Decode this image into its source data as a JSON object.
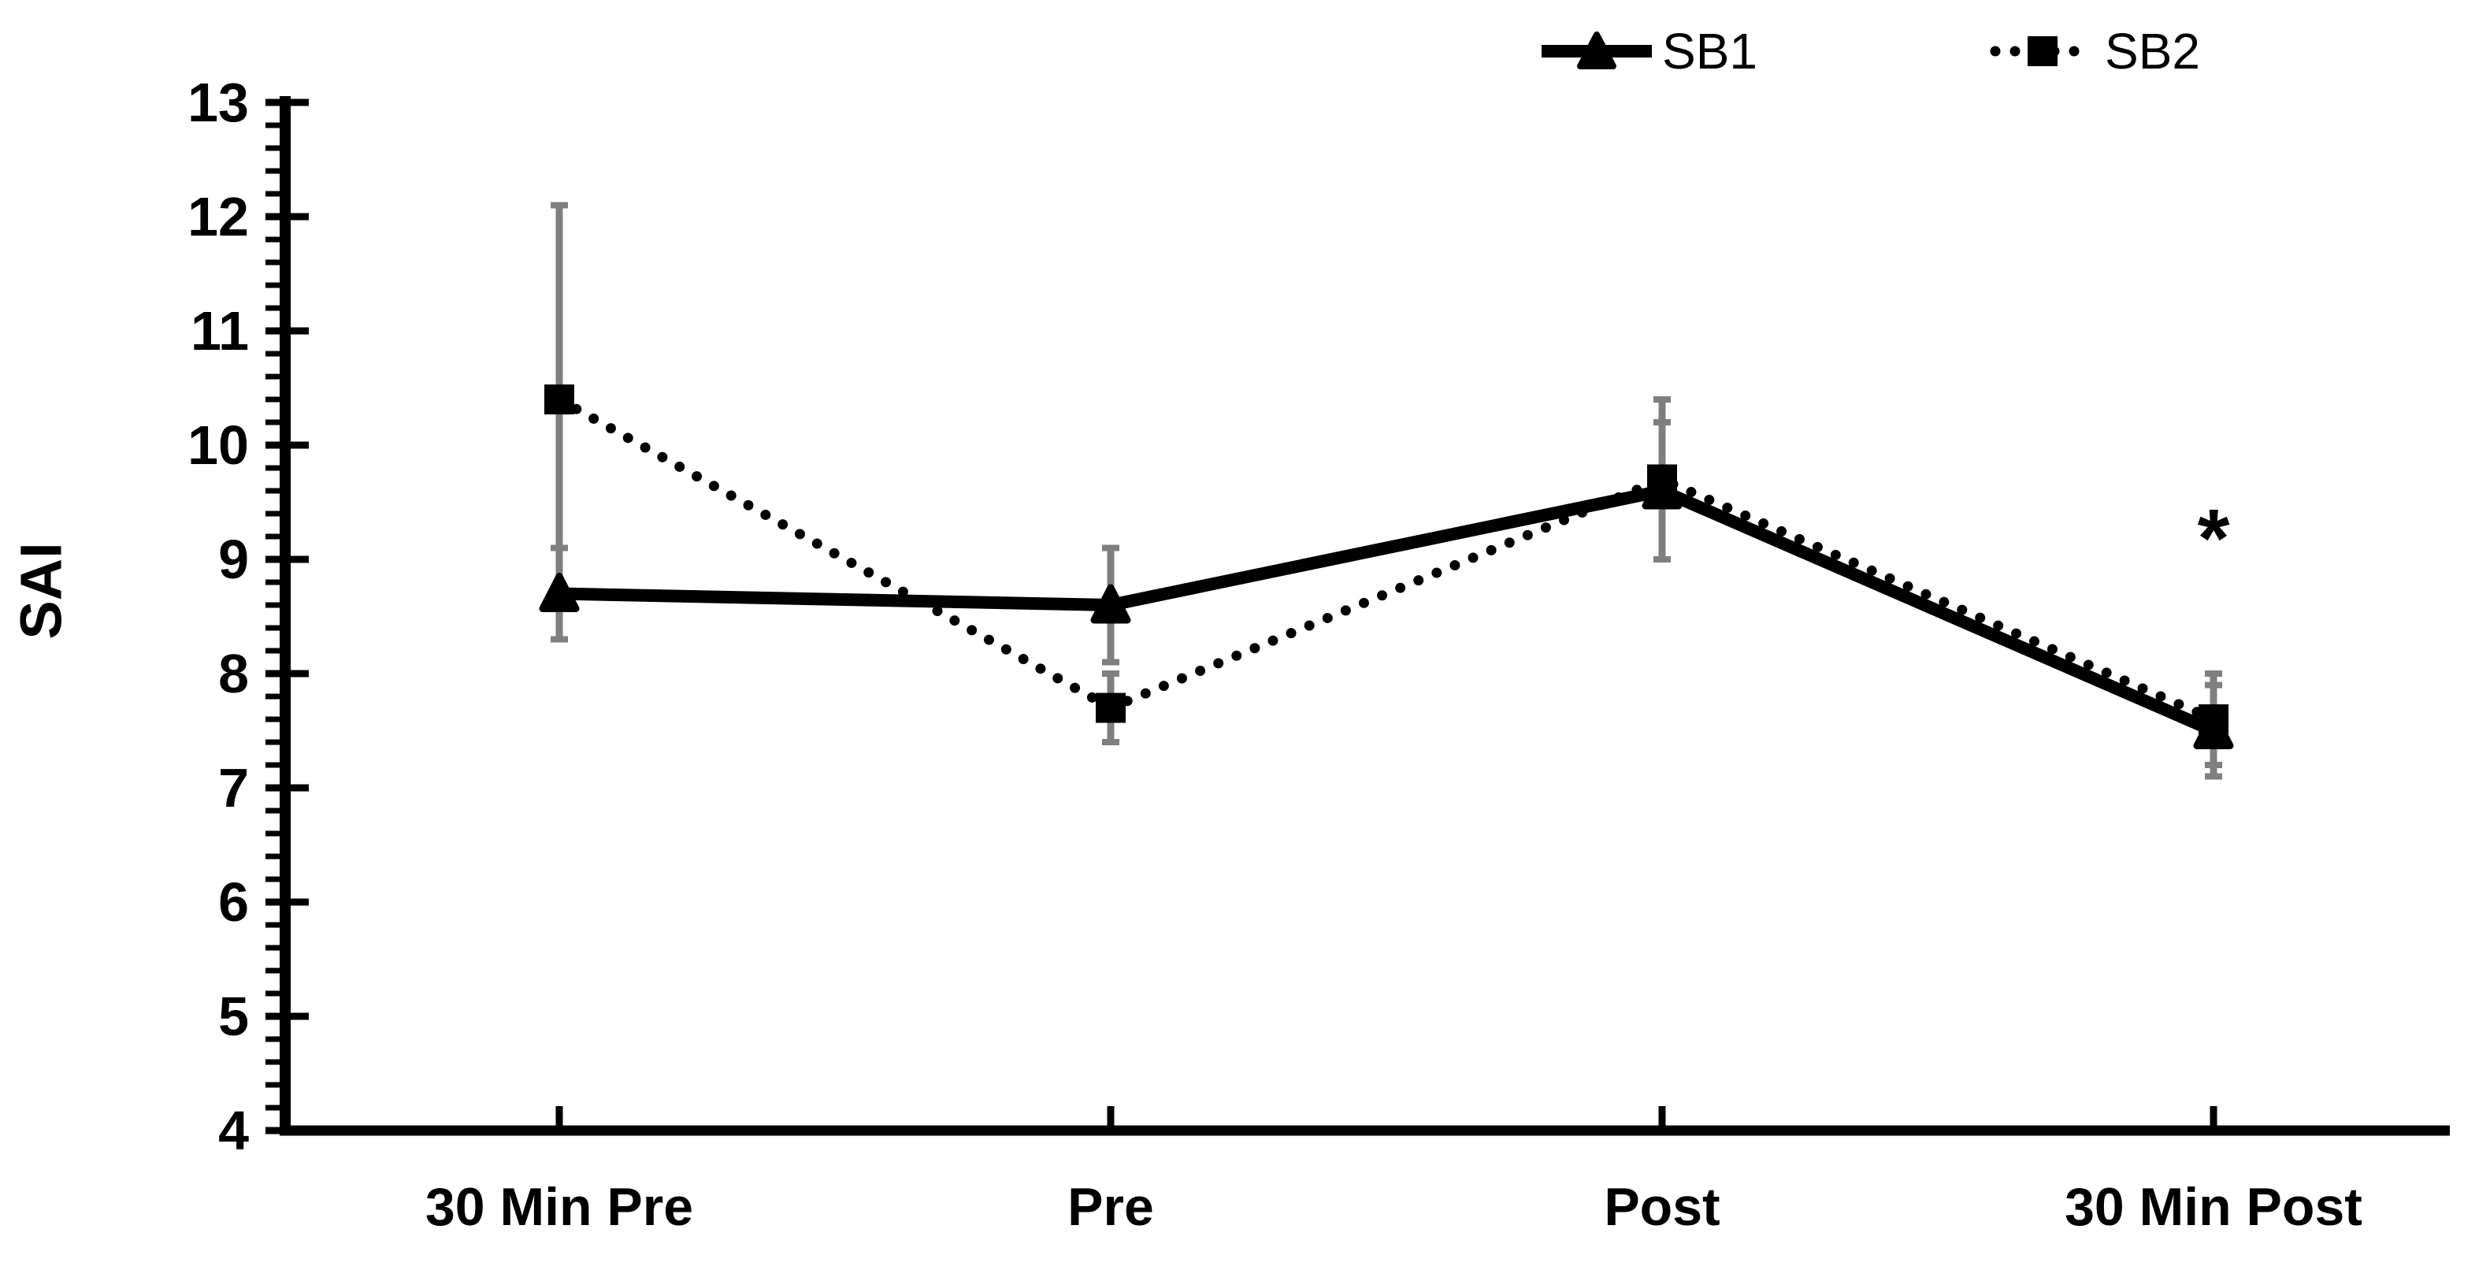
{
  "chart_data": {
    "type": "line",
    "title": "",
    "ylabel": "SAI",
    "xlabel": "",
    "categories": [
      "30 Min Pre",
      "Pre",
      "Post",
      "30 Min Post"
    ],
    "ylim": [
      4,
      13
    ],
    "yticks": [
      13,
      12,
      11,
      10,
      9,
      8,
      7,
      6,
      5,
      4
    ],
    "ytick_step": 1,
    "yminor_step": 0.2,
    "grid": false,
    "legend_position": "top-right",
    "series": [
      {
        "name": "SB1",
        "marker": "triangle",
        "line_style": "solid",
        "color": "#000000",
        "values": [
          8.7,
          8.6,
          9.6,
          7.5
        ],
        "error": [
          0.4,
          0.5,
          0.6,
          0.4
        ]
      },
      {
        "name": "SB2",
        "marker": "square",
        "line_style": "dotted",
        "color": "#000000",
        "values": [
          10.4,
          7.7,
          9.7,
          7.6
        ],
        "error": [
          1.7,
          0.3,
          0.7,
          0.4
        ]
      }
    ],
    "error_bar_color": "#7f7f7f",
    "axis_color": "#000000",
    "annotations": [
      {
        "text": "*",
        "category": "30 Min Post",
        "y": 9.3
      }
    ]
  }
}
